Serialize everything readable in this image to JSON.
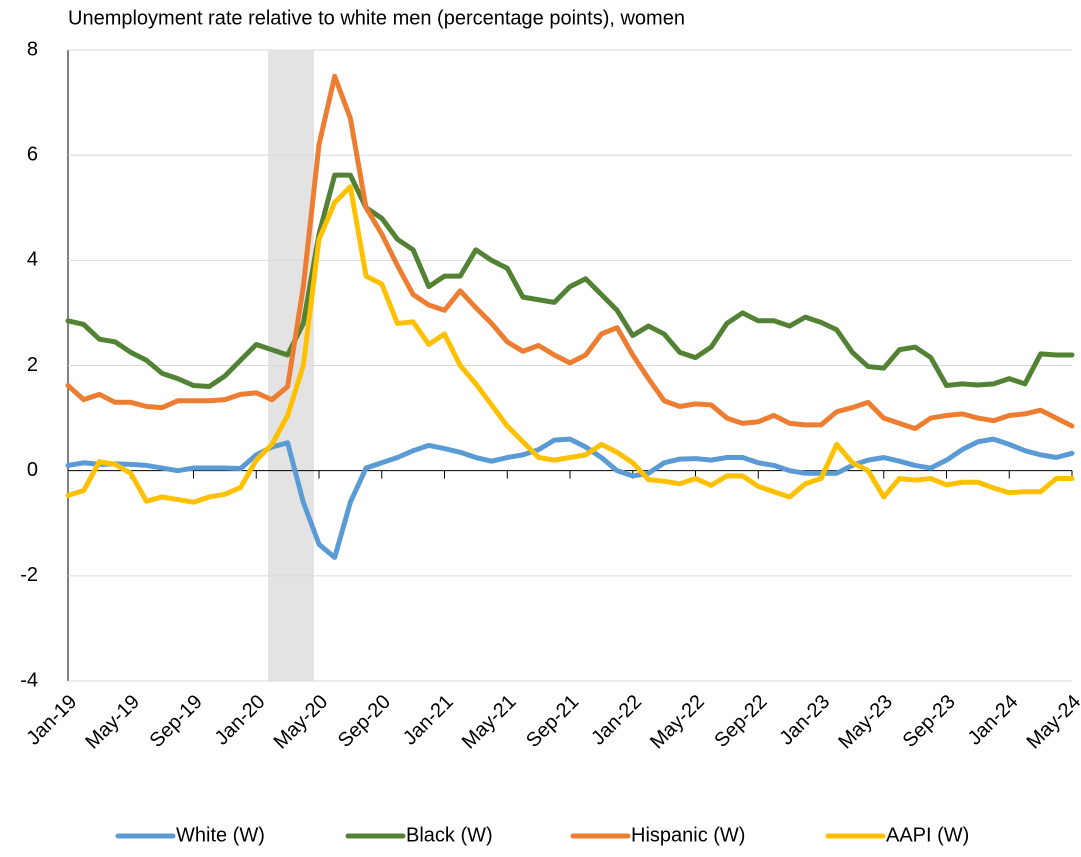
{
  "chart_data": {
    "type": "line",
    "title": "Unemployment rate relative to white men (percentage points), women",
    "categories": [
      "Jan-19",
      null,
      null,
      null,
      "May-19",
      null,
      null,
      null,
      "Sep-19",
      null,
      null,
      null,
      "Jan-20",
      null,
      null,
      null,
      "May-20",
      null,
      null,
      null,
      "Sep-20",
      null,
      null,
      null,
      "Jan-21",
      null,
      null,
      null,
      "May-21",
      null,
      null,
      null,
      "Sep-21",
      null,
      null,
      null,
      "Jan-22",
      null,
      null,
      null,
      "May-22",
      null,
      null,
      null,
      "Sep-22",
      null,
      null,
      null,
      "Jan-23",
      null,
      null,
      null,
      "May-23",
      null,
      null,
      null,
      "Sep-23",
      null,
      null,
      null,
      "Jan-24",
      null,
      null,
      null,
      "May-24"
    ],
    "series": [
      {
        "name": "White (W)",
        "color": "#5b9bd5",
        "values": [
          0.1,
          0.15,
          0.12,
          0.13,
          0.12,
          0.1,
          0.05,
          0.0,
          0.05,
          0.05,
          0.05,
          0.04,
          0.3,
          0.45,
          0.53,
          -0.6,
          -1.4,
          -1.65,
          -0.6,
          0.05,
          0.15,
          0.25,
          0.38,
          0.48,
          0.42,
          0.35,
          0.25,
          0.18,
          0.25,
          0.3,
          0.4,
          0.58,
          0.6,
          0.45,
          0.25,
          0.0,
          -0.1,
          -0.05,
          0.15,
          0.22,
          0.23,
          0.2,
          0.25,
          0.25,
          0.15,
          0.1,
          0.0,
          -0.05,
          -0.05,
          -0.05,
          0.1,
          0.2,
          0.25,
          0.18,
          0.1,
          0.05,
          0.2,
          0.4,
          0.55,
          0.6,
          0.5,
          0.38,
          0.3,
          0.25,
          0.33
        ]
      },
      {
        "name": "Black (W)",
        "color": "#548235",
        "values": [
          2.85,
          2.78,
          2.5,
          2.45,
          2.25,
          2.1,
          1.85,
          1.75,
          1.62,
          1.6,
          1.8,
          2.1,
          2.4,
          2.3,
          2.2,
          2.8,
          4.5,
          5.62,
          5.62,
          5.0,
          4.8,
          4.4,
          4.2,
          3.5,
          3.7,
          3.7,
          4.2,
          4.0,
          3.85,
          3.3,
          3.25,
          3.2,
          3.5,
          3.65,
          3.35,
          3.05,
          2.57,
          2.75,
          2.6,
          2.25,
          2.15,
          2.35,
          2.8,
          3.0,
          2.85,
          2.85,
          2.75,
          2.92,
          2.82,
          2.68,
          2.25,
          1.98,
          1.95,
          2.3,
          2.35,
          2.15,
          1.62,
          1.65,
          1.63,
          1.65,
          1.75,
          1.65,
          2.22,
          2.2,
          2.2
        ]
      },
      {
        "name": "Hispanic (W)",
        "color": "#ed7d31",
        "values": [
          1.62,
          1.35,
          1.45,
          1.3,
          1.3,
          1.22,
          1.2,
          1.33,
          1.33,
          1.33,
          1.35,
          1.45,
          1.48,
          1.35,
          1.6,
          3.5,
          6.2,
          7.5,
          6.7,
          5.0,
          4.5,
          3.9,
          3.35,
          3.15,
          3.05,
          3.42,
          3.1,
          2.8,
          2.45,
          2.27,
          2.38,
          2.2,
          2.05,
          2.2,
          2.6,
          2.72,
          2.2,
          1.75,
          1.33,
          1.22,
          1.27,
          1.25,
          1.0,
          0.9,
          0.93,
          1.05,
          0.9,
          0.87,
          0.87,
          1.12,
          1.2,
          1.3,
          1.0,
          0.9,
          0.8,
          1.0,
          1.05,
          1.08,
          1.0,
          0.95,
          1.05,
          1.08,
          1.15,
          1.0,
          0.85
        ]
      },
      {
        "name": "AAPI (W)",
        "color": "#ffc000",
        "values": [
          -0.47,
          -0.38,
          0.17,
          0.12,
          -0.05,
          -0.58,
          -0.5,
          -0.55,
          -0.6,
          -0.5,
          -0.45,
          -0.32,
          0.2,
          0.5,
          1.05,
          2.0,
          4.4,
          5.1,
          5.4,
          3.7,
          3.55,
          2.8,
          2.83,
          2.4,
          2.6,
          2.0,
          1.65,
          1.25,
          0.85,
          0.55,
          0.25,
          0.2,
          0.25,
          0.3,
          0.5,
          0.35,
          0.15,
          -0.17,
          -0.2,
          -0.25,
          -0.15,
          -0.28,
          -0.1,
          -0.1,
          -0.3,
          -0.4,
          -0.5,
          -0.25,
          -0.15,
          0.5,
          0.15,
          0.0,
          -0.5,
          -0.15,
          -0.18,
          -0.15,
          -0.27,
          -0.22,
          -0.22,
          -0.33,
          -0.42,
          -0.4,
          -0.4,
          -0.15,
          -0.15
        ]
      }
    ],
    "ylim": [
      -4,
      8
    ],
    "yticks": [
      -4,
      -2,
      0,
      2,
      4,
      6,
      8
    ],
    "grid": true
  }
}
